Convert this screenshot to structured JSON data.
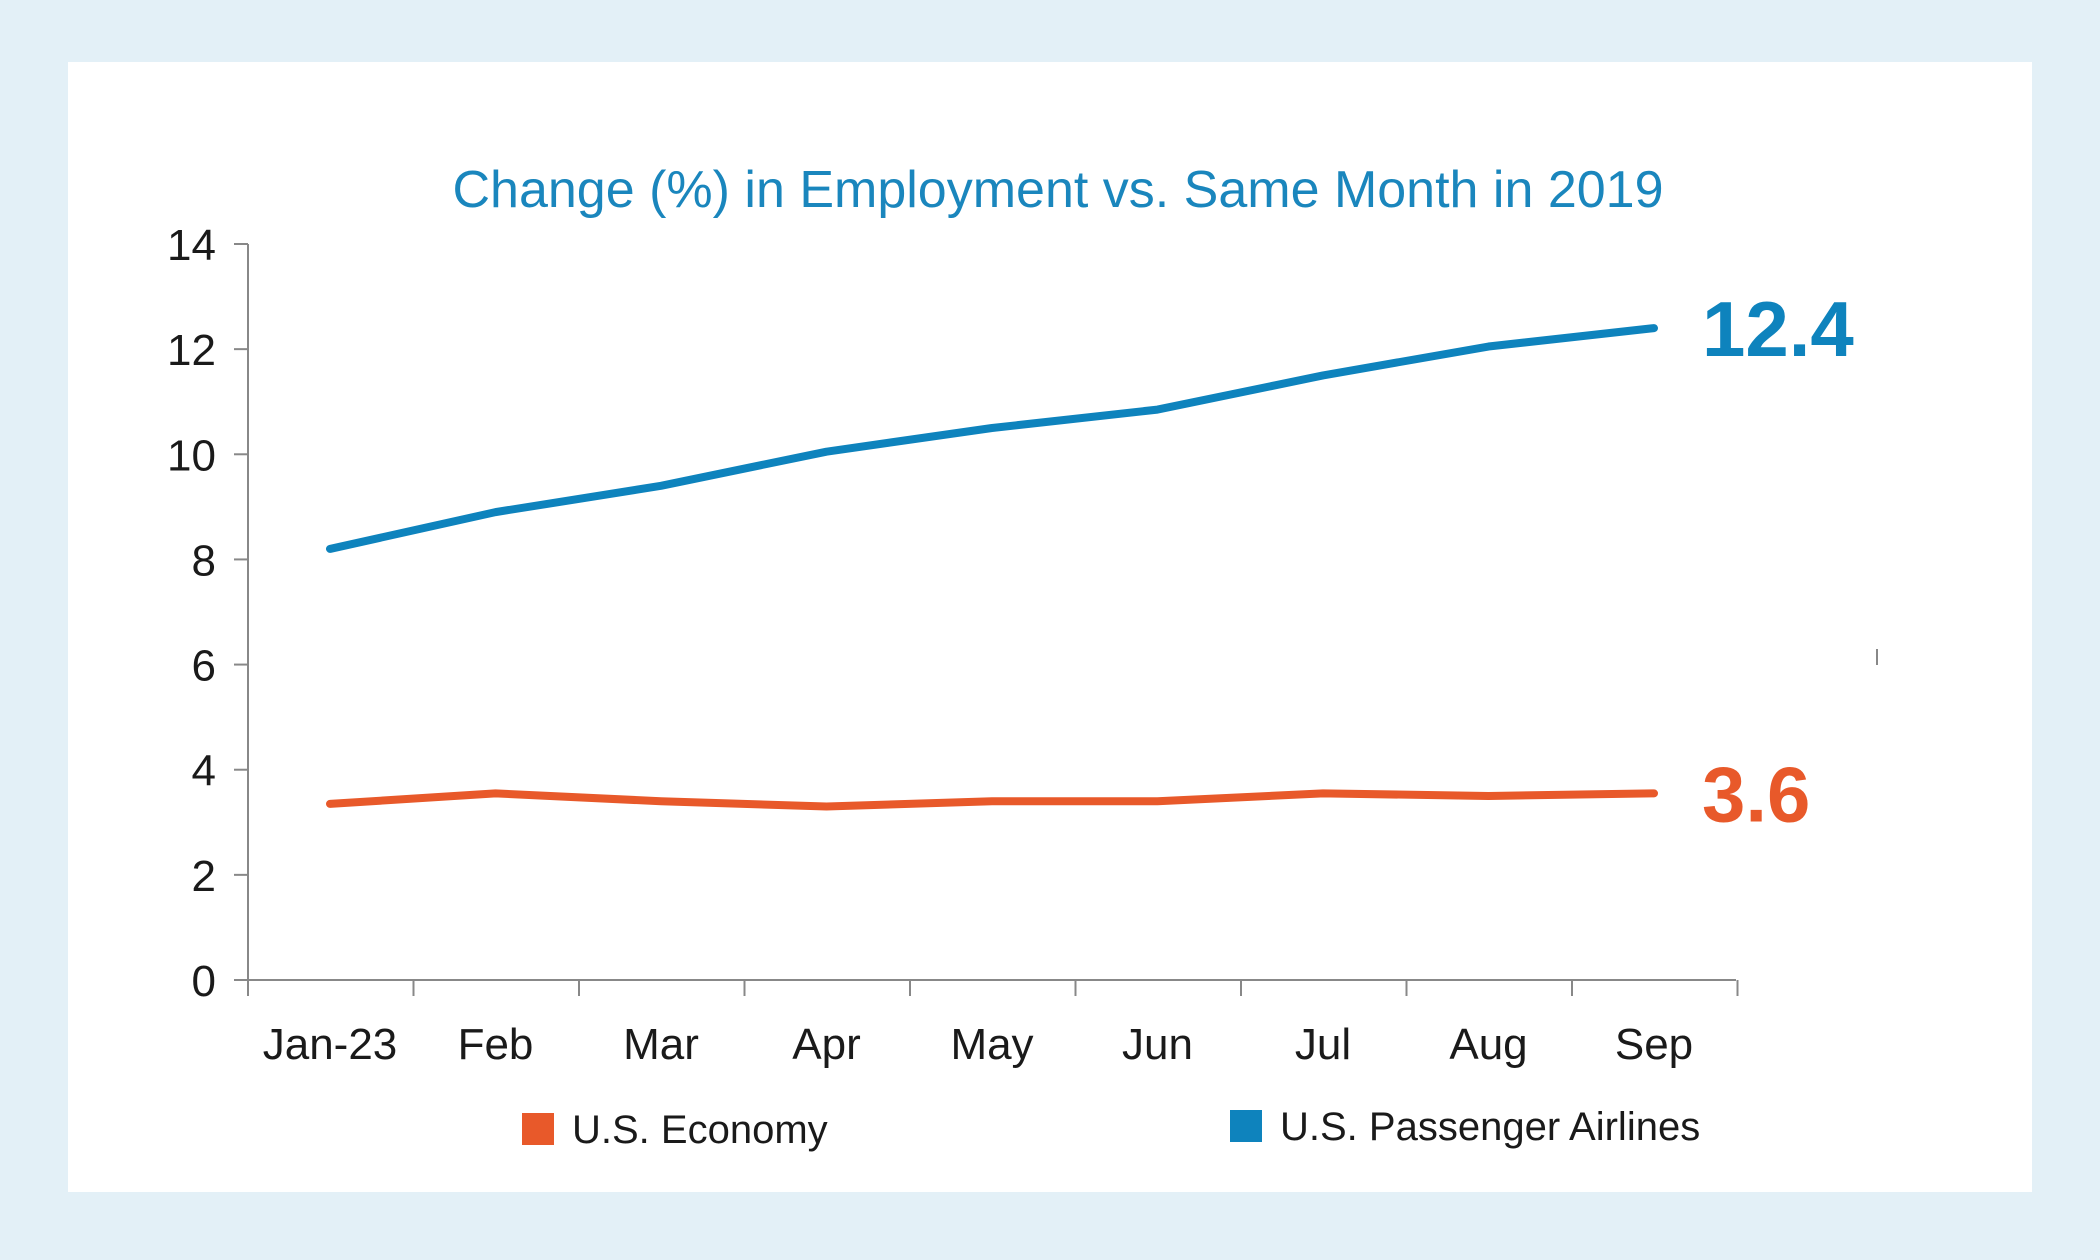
{
  "chart_data": {
    "type": "line",
    "title": "Change (%) in Employment vs. Same Month in 2019",
    "xlabel": "",
    "ylabel": "",
    "ylim": [
      0,
      14
    ],
    "yticks": [
      0,
      2,
      4,
      6,
      8,
      10,
      12,
      14
    ],
    "grid": false,
    "legend_position": "bottom",
    "categories": [
      "Jan-23",
      "Feb",
      "Mar",
      "Apr",
      "May",
      "Jun",
      "Jul",
      "Aug",
      "Sep"
    ],
    "series": [
      {
        "name": "U.S. Passenger Airlines",
        "color": "#0e83bd",
        "values": [
          8.2,
          8.9,
          9.4,
          10.05,
          10.5,
          10.85,
          11.5,
          12.05,
          12.4
        ],
        "end_label": "12.4"
      },
      {
        "name": "U.S. Economy",
        "color": "#e8592a",
        "values": [
          3.35,
          3.55,
          3.4,
          3.3,
          3.4,
          3.4,
          3.55,
          3.5,
          3.55
        ],
        "end_label": "3.6"
      }
    ],
    "legend": [
      "U.S. Economy",
      "U.S. Passenger Airlines"
    ]
  }
}
